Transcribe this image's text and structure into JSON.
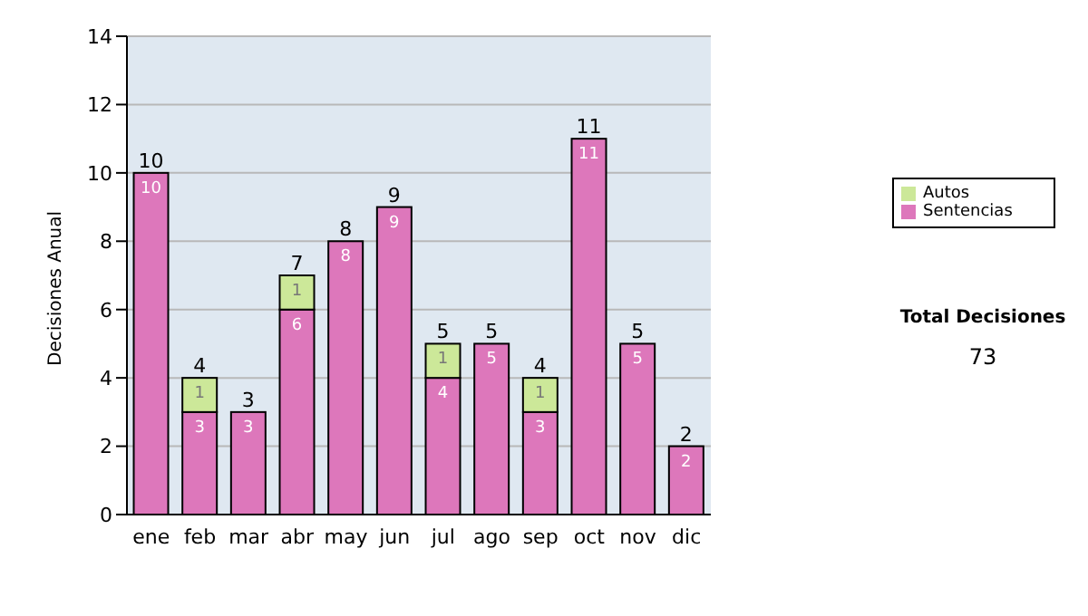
{
  "chart_data": {
    "type": "bar",
    "stacked": true,
    "ylabel": "Decisiones Anual",
    "categories": [
      "ene",
      "feb",
      "mar",
      "abr",
      "may",
      "jun",
      "jul",
      "ago",
      "sep",
      "oct",
      "nov",
      "dic"
    ],
    "series": [
      {
        "name": "Sentencias",
        "color": "#dd77bb",
        "values": [
          10,
          3,
          3,
          6,
          8,
          9,
          4,
          5,
          3,
          11,
          5,
          2
        ],
        "value_labels": [
          "10",
          "3",
          "3",
          "6",
          "8",
          "9",
          "4",
          "5",
          "3",
          "11",
          "5",
          "2"
        ]
      },
      {
        "name": "Autos",
        "color": "#cce899",
        "values": [
          null,
          1,
          null,
          1,
          null,
          null,
          1,
          null,
          1,
          null,
          null,
          null
        ],
        "value_labels": [
          null,
          "1",
          null,
          "1",
          null,
          null,
          "1",
          null,
          "1",
          null,
          null,
          null
        ]
      }
    ],
    "totals": [
      "10",
      "4",
      "3",
      "7",
      "8",
      "9",
      "5",
      "5",
      "4",
      "11",
      "5",
      "2"
    ],
    "ylim": [
      0,
      14
    ],
    "yticks": [
      0,
      2,
      4,
      6,
      8,
      10,
      12,
      14
    ],
    "grid": "y",
    "legend": "right",
    "annotations": [
      "Total Decisiones",
      "73"
    ]
  }
}
